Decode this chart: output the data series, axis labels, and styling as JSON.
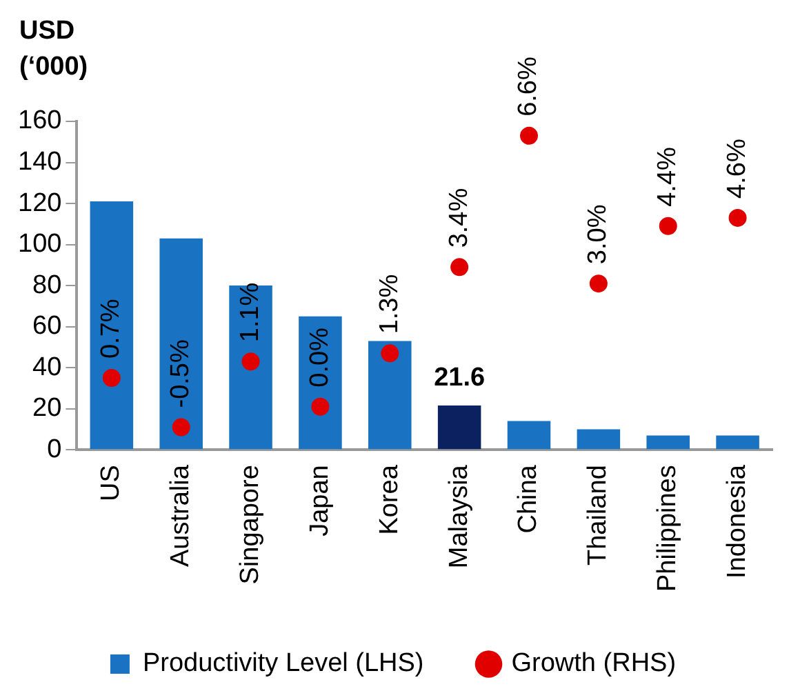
{
  "chart_data": {
    "type": "bar",
    "ylabel": "USD (‘000)",
    "categories": [
      "US",
      "Australia",
      "Singapore",
      "Japan",
      "Korea",
      "Malaysia",
      "China",
      "Thailand",
      "Philippines",
      "Indonesia"
    ],
    "series": [
      {
        "name": "Productivity Level (LHS)",
        "color": "#1a72c2",
        "colors": [
          "#1a72c2",
          "#1a72c2",
          "#1a72c2",
          "#1a72c2",
          "#1a72c2",
          "#0b2160",
          "#1a72c2",
          "#1a72c2",
          "#1a72c2",
          "#1a72c2"
        ],
        "values": [
          121,
          103,
          80,
          65,
          53,
          21.6,
          14,
          10,
          7,
          7
        ],
        "value_labels": [
          null,
          null,
          null,
          null,
          null,
          "21.6",
          null,
          null,
          null,
          null
        ]
      },
      {
        "name": "Growth (RHS)",
        "type": "scatter",
        "axis": "y2",
        "color": "#e00000",
        "x": [
          "US",
          "Australia",
          "Singapore",
          "Japan",
          "Korea",
          "Malaysia",
          "China",
          "Thailand",
          "Philippines",
          "Indonesia"
        ],
        "values": [
          0.7,
          -0.5,
          1.1,
          0.0,
          1.3,
          3.4,
          6.6,
          3.0,
          4.4,
          4.6
        ],
        "value_labels": [
          "0.7%",
          "-0.5%",
          "1.1%",
          "0.0%",
          "1.3%",
          "3.4%",
          "6.6%",
          "3.0%",
          "4.4%",
          "4.6%"
        ]
      }
    ],
    "ylim": [
      0,
      160
    ],
    "yticks": [
      0,
      20,
      40,
      60,
      80,
      100,
      120,
      140,
      160
    ],
    "y2lim": [
      -1.05,
      6.95
    ],
    "grid": false,
    "legend": "bottom",
    "marker": "circle"
  }
}
